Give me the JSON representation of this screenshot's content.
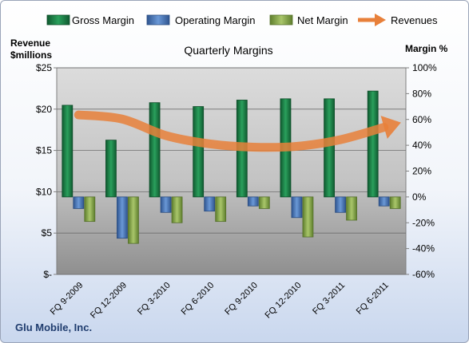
{
  "chart_data": {
    "type": "bar",
    "title": "Quarterly Margins",
    "left_axis_title_line1": "Revenue",
    "left_axis_title_line2": "$millions",
    "right_axis_title": "Margin %",
    "footer": "Glu Mobile, Inc.",
    "categories": [
      "FQ 9-2009",
      "FQ 12-2009",
      "FQ 3-2010",
      "FQ 6-2010",
      "FQ 9-2010",
      "FQ 12-2010",
      "FQ 3-2011",
      "FQ 6-2011"
    ],
    "left_axis": {
      "ylim": [
        0,
        25
      ],
      "ticks": [
        "$-",
        "$5",
        "$10",
        "$15",
        "$20",
        "$25"
      ]
    },
    "right_axis": {
      "ylim": [
        -60,
        100
      ],
      "ticks": [
        "-60%",
        "-40%",
        "-20%",
        "0%",
        "20%",
        "40%",
        "60%",
        "80%",
        "100%"
      ]
    },
    "grid": true,
    "legend_position": "top",
    "series": [
      {
        "name": "Gross Margin",
        "type": "bar",
        "axis": "right",
        "color": "#1e7a46",
        "values": [
          71,
          44,
          73,
          70,
          75,
          76,
          76,
          82
        ]
      },
      {
        "name": "Operating Margin",
        "type": "bar",
        "axis": "right",
        "color": "#4a78b8",
        "values": [
          -9,
          -32,
          -12,
          -11,
          -7,
          -16,
          -12,
          -7
        ]
      },
      {
        "name": "Net Margin",
        "type": "bar",
        "axis": "right",
        "color": "#86a84a",
        "values": [
          -19,
          -36,
          -20,
          -19,
          -9,
          -31,
          -18,
          -9
        ]
      },
      {
        "name": "Revenues",
        "type": "line",
        "axis": "left",
        "color": "#e8803a",
        "values": [
          19.3,
          18.8,
          16.8,
          15.8,
          15.4,
          15.5,
          16.3,
          17.8
        ]
      }
    ]
  }
}
